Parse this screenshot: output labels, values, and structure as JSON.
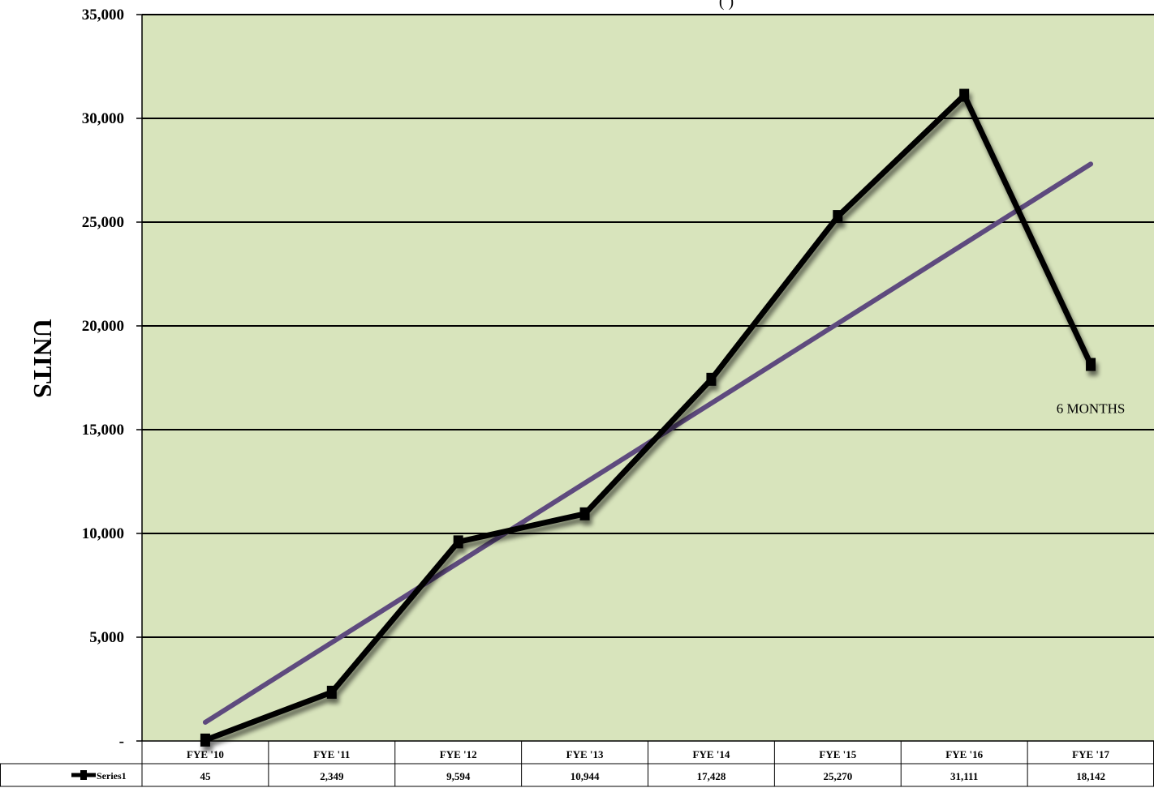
{
  "chart_data": {
    "type": "line",
    "title_fragment": "(                        )",
    "ylabel": "UNITS",
    "ylim": [
      0,
      35000
    ],
    "yticks": [
      0,
      5000,
      10000,
      15000,
      20000,
      25000,
      30000,
      35000
    ],
    "ytick_labels": [
      "-",
      "5,000",
      "10,000",
      "15,000",
      "20,000",
      "25,000",
      "30,000",
      "35,000"
    ],
    "categories": [
      "FYE '10",
      "FYE '11",
      "FYE '12",
      "FYE '13",
      "FYE '14",
      "FYE '15",
      "FYE '16",
      "FYE '17"
    ],
    "series": [
      {
        "name": "Series1",
        "values": [
          45,
          2349,
          9594,
          10944,
          17428,
          25270,
          31111,
          18142
        ],
        "value_labels": [
          "45",
          "2,349",
          "9,594",
          "10,944",
          "17,428",
          "25,270",
          "31,111",
          "18,142"
        ],
        "color": "#000000"
      }
    ],
    "trendline": {
      "type": "linear",
      "color": "#5e4a7e",
      "start_value": 900,
      "end_value": 27800
    },
    "annotations": [
      {
        "text": "6 MONTHS",
        "category_index": 7
      }
    ],
    "plot_background": "#d8e4bc",
    "grid": true,
    "legend": "data-table-bottom-left",
    "data_table": true
  }
}
